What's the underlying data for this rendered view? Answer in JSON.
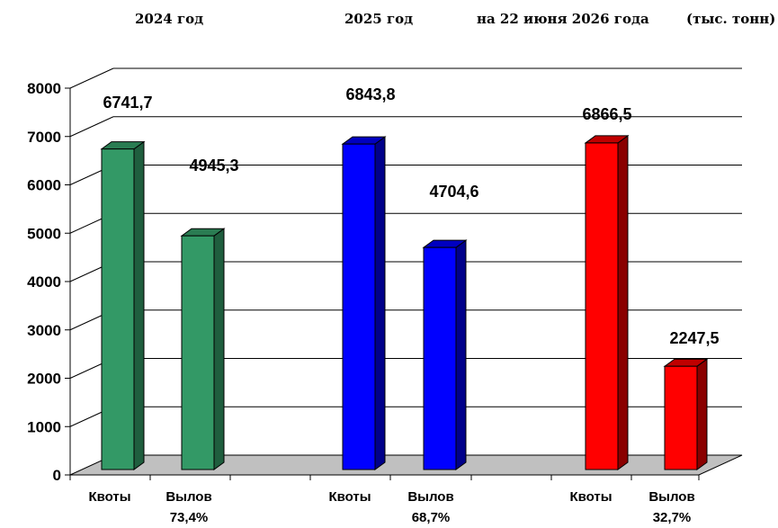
{
  "headers": {
    "group1": "2024  год",
    "group2": "2025  год",
    "group3": "на 22 июня 2026 года",
    "units": "(тыс. тонн)"
  },
  "chart_data": {
    "type": "bar",
    "style": "3d",
    "ylim": [
      0,
      8000
    ],
    "yticks": [
      0,
      1000,
      2000,
      3000,
      4000,
      5000,
      6000,
      7000,
      8000
    ],
    "grid": true,
    "groups": [
      {
        "title": "2024  год",
        "color": "#339966",
        "side_color": "#1f5e3e",
        "top_color": "#2a7c52",
        "bars": [
          {
            "label": "Квоты",
            "value": 6741.7,
            "value_label": "6741,7"
          },
          {
            "label": "Вылов",
            "sublabel": "73,4%",
            "value": 4945.3,
            "value_label": "4945,3"
          }
        ]
      },
      {
        "title": "2025  год",
        "color": "#0000ff",
        "side_color": "#00008a",
        "top_color": "#0000c0",
        "bars": [
          {
            "label": "Квоты",
            "value": 6843.8,
            "value_label": "6843,8"
          },
          {
            "label": "Вылов",
            "sublabel": "68,7%",
            "value": 4704.6,
            "value_label": "4704,6"
          }
        ]
      },
      {
        "title": "на 22 июня 2026 года",
        "color": "#ff0000",
        "side_color": "#8a0000",
        "top_color": "#c00000",
        "bars": [
          {
            "label": "Квоты",
            "value": 6866.5,
            "value_label": "6866,5"
          },
          {
            "label": "Вылов",
            "sublabel": "32,7%",
            "value": 2247.5,
            "value_label": "2247,5"
          }
        ]
      }
    ]
  }
}
